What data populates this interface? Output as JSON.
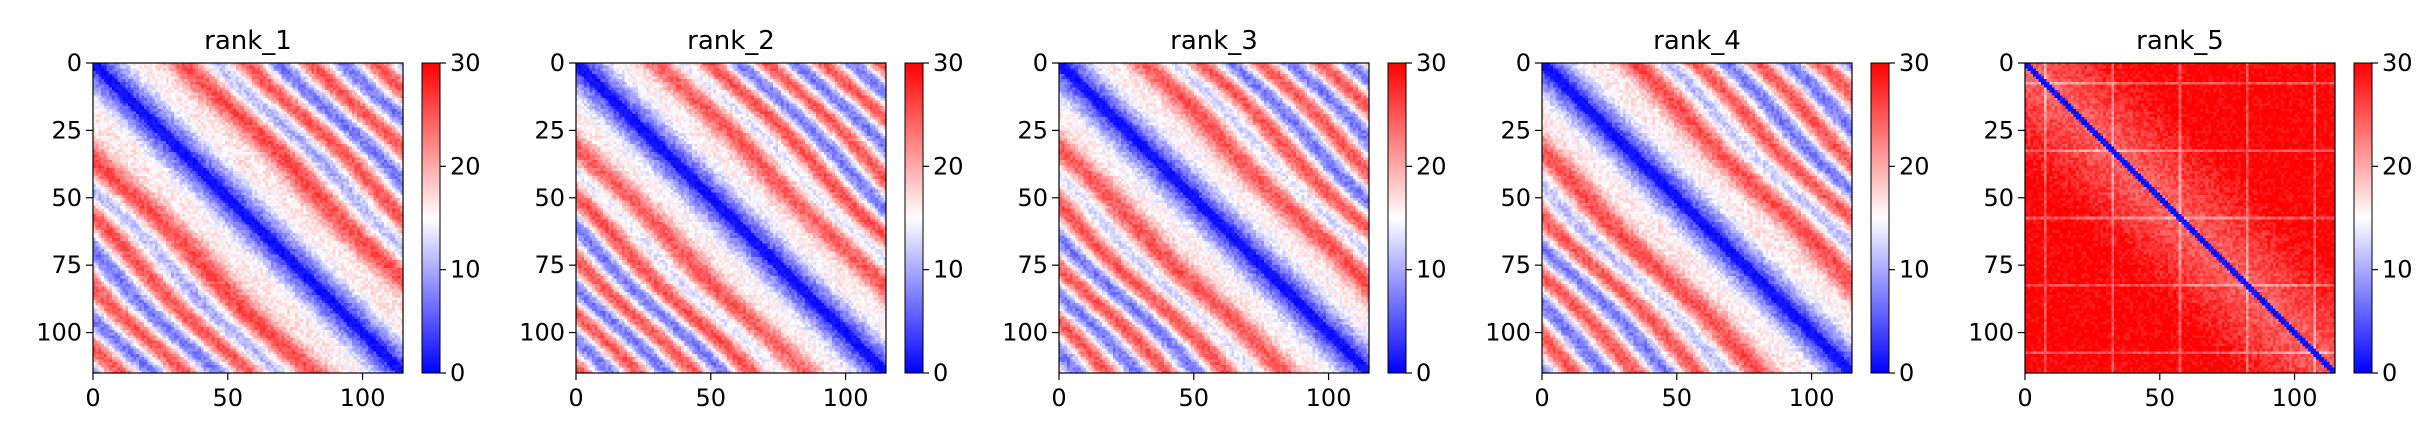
{
  "chart_data": [
    {
      "type": "heatmap",
      "title": "rank_1",
      "n": 115,
      "pattern": "stripes",
      "period": 24,
      "offset": 10,
      "zlim": [
        0,
        30
      ],
      "colormap": "bwr",
      "colorbar_ticks": [
        0,
        10,
        20,
        30
      ],
      "x_ticks": [
        0,
        50,
        100
      ],
      "y_ticks": [
        0,
        25,
        50,
        75,
        100
      ],
      "xlim": [
        0,
        115
      ],
      "ylim": [
        115,
        0
      ]
    },
    {
      "type": "heatmap",
      "title": "rank_2",
      "n": 115,
      "pattern": "stripes",
      "period": 21,
      "offset": 9,
      "zlim": [
        0,
        30
      ],
      "colormap": "bwr",
      "colorbar_ticks": [
        0,
        10,
        20,
        30
      ],
      "x_ticks": [
        0,
        50,
        100
      ],
      "y_ticks": [
        0,
        25,
        50,
        75,
        100
      ],
      "xlim": [
        0,
        115
      ],
      "ylim": [
        115,
        0
      ]
    },
    {
      "type": "heatmap",
      "title": "rank_3",
      "n": 115,
      "pattern": "stripes",
      "period": 22,
      "offset": 9,
      "zlim": [
        0,
        30
      ],
      "colormap": "bwr",
      "colorbar_ticks": [
        0,
        10,
        20,
        30
      ],
      "x_ticks": [
        0,
        50,
        100
      ],
      "y_ticks": [
        0,
        25,
        50,
        75,
        100
      ],
      "xlim": [
        0,
        115
      ],
      "ylim": [
        115,
        0
      ]
    },
    {
      "type": "heatmap",
      "title": "rank_4",
      "n": 115,
      "pattern": "stripes",
      "period": 23,
      "offset": 10,
      "zlim": [
        0,
        30
      ],
      "colormap": "bwr",
      "colorbar_ticks": [
        0,
        10,
        20,
        30
      ],
      "x_ticks": [
        0,
        50,
        100
      ],
      "y_ticks": [
        0,
        25,
        50,
        75,
        100
      ],
      "xlim": [
        0,
        115
      ],
      "ylim": [
        115,
        0
      ]
    },
    {
      "type": "heatmap",
      "title": "rank_5",
      "n": 115,
      "pattern": "far",
      "period": 0,
      "offset": 0,
      "zlim": [
        0,
        30
      ],
      "colormap": "bwr",
      "colorbar_ticks": [
        0,
        10,
        20,
        30
      ],
      "x_ticks": [
        0,
        50,
        100
      ],
      "y_ticks": [
        0,
        25,
        50,
        75,
        100
      ],
      "xlim": [
        0,
        115
      ],
      "ylim": [
        115,
        0
      ]
    }
  ]
}
